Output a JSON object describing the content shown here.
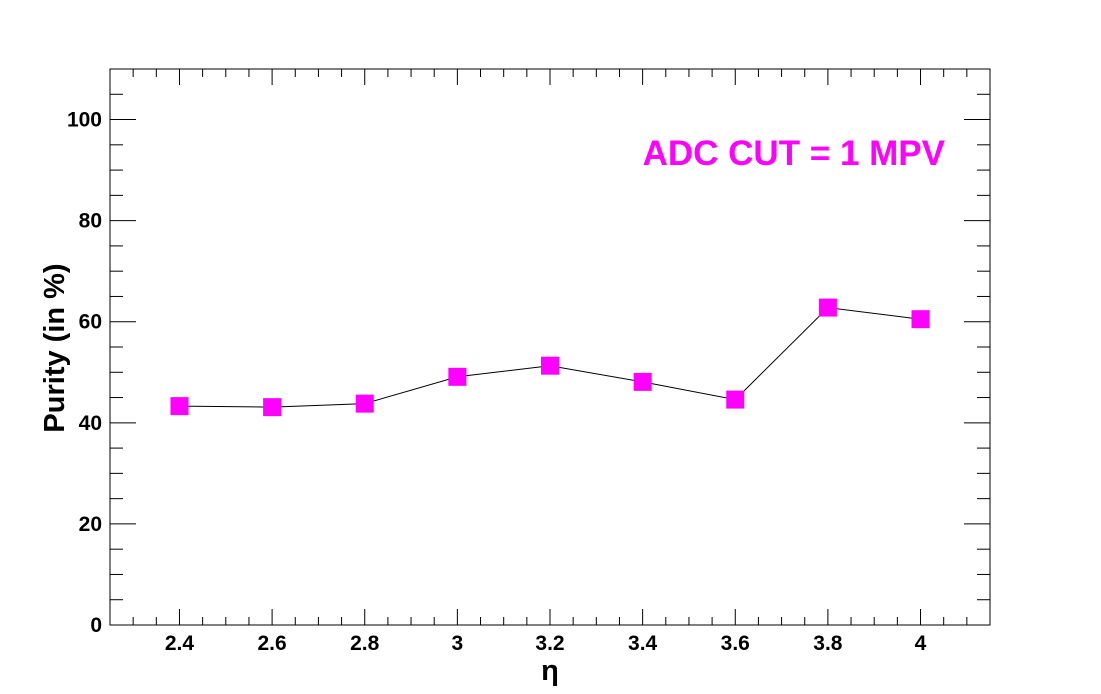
{
  "chart_data": {
    "type": "line",
    "xlabel": "η",
    "ylabel": "Purity (in %)",
    "annotation": "ADC CUT = 1 MPV",
    "xlim": [
      2.25,
      4.15
    ],
    "ylim": [
      0,
      110
    ],
    "x_ticks": [
      2.4,
      2.6,
      2.8,
      3,
      3.2,
      3.4,
      3.6,
      3.8,
      4
    ],
    "x_tick_labels": [
      "2.4",
      "2.6",
      "2.8",
      "3",
      "3.2",
      "3.4",
      "3.6",
      "3.8",
      "4"
    ],
    "y_ticks": [
      0,
      20,
      40,
      60,
      80,
      100
    ],
    "y_tick_labels": [
      "0",
      "20",
      "40",
      "60",
      "80",
      "100"
    ],
    "grid": false,
    "series": [
      {
        "x": [
          2.4,
          2.6,
          2.8,
          3.0,
          3.2,
          3.4,
          3.6,
          3.8,
          4.0
        ],
        "y": [
          43.3,
          43.1,
          43.8,
          49.1,
          51.3,
          48.1,
          44.6,
          62.8,
          60.5
        ],
        "marker": "square",
        "marker_color": "#ff00ff",
        "line_color": "#000000"
      }
    ]
  }
}
